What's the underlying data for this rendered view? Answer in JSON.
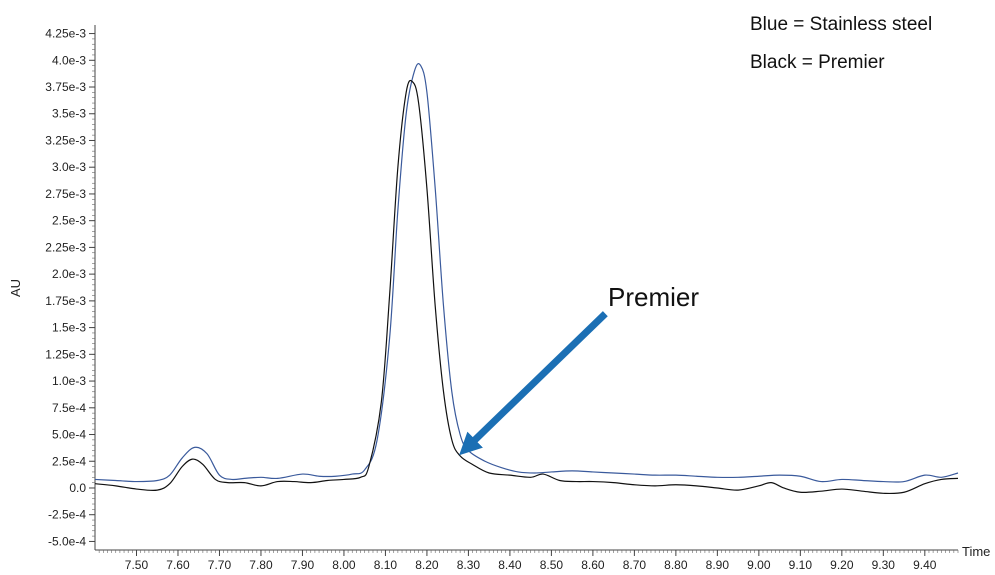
{
  "chart_data": {
    "type": "line",
    "xlabel": "Time",
    "ylabel": "AU",
    "xlim": [
      7.4,
      9.48
    ],
    "ylim": [
      -0.00058,
      0.00433
    ],
    "x_ticks": [
      7.5,
      7.6,
      7.7,
      7.8,
      7.9,
      8.0,
      8.1,
      8.2,
      8.3,
      8.4,
      8.5,
      8.6,
      8.7,
      8.8,
      8.9,
      9.0,
      9.1,
      9.2,
      9.3,
      9.4
    ],
    "x_tick_labels": [
      "7.50",
      "7.60",
      "7.70",
      "7.80",
      "7.90",
      "8.00",
      "8.10",
      "8.20",
      "8.30",
      "8.40",
      "8.50",
      "8.60",
      "8.70",
      "8.80",
      "8.90",
      "9.00",
      "9.10",
      "9.20",
      "9.30",
      "9.40"
    ],
    "y_ticks": [
      0.00425,
      0.004,
      0.00375,
      0.0035,
      0.00325,
      0.003,
      0.00275,
      0.0025,
      0.00225,
      0.002,
      0.00175,
      0.0015,
      0.00125,
      0.001,
      0.00075,
      0.0005,
      0.00025,
      0.0,
      -0.00025,
      -0.0005
    ],
    "y_tick_labels": [
      "4.25e-3",
      "4.0e-3",
      "3.75e-3",
      "3.5e-3",
      "3.25e-3",
      "3.0e-3",
      "2.75e-3",
      "2.5e-3",
      "2.25e-3",
      "2.0e-3",
      "1.75e-3",
      "1.5e-3",
      "1.25e-3",
      "1.0e-3",
      "7.5e-4",
      "5.0e-4",
      "2.5e-4",
      "0.0",
      "-2.5e-4",
      "-5.0e-4"
    ],
    "grid": false,
    "legend_lines": [
      "Blue = Stainless steel",
      "Black = Premier"
    ],
    "series": [
      {
        "color": "#3a5a9c",
        "points": [
          [
            7.4,
            8e-05
          ],
          [
            7.45,
            7e-05
          ],
          [
            7.5,
            6e-05
          ],
          [
            7.55,
            7e-05
          ],
          [
            7.58,
            0.00012
          ],
          [
            7.61,
            0.00028
          ],
          [
            7.64,
            0.00038
          ],
          [
            7.67,
            0.00032
          ],
          [
            7.7,
            0.00012
          ],
          [
            7.73,
            8e-05
          ],
          [
            7.76,
            9e-05
          ],
          [
            7.8,
            0.0001
          ],
          [
            7.84,
            9e-05
          ],
          [
            7.9,
            0.00013
          ],
          [
            7.94,
            0.00011
          ],
          [
            7.98,
            0.00011
          ],
          [
            8.02,
            0.00013
          ],
          [
            8.05,
            0.00017
          ],
          [
            8.08,
            0.00045
          ],
          [
            8.11,
            0.0014
          ],
          [
            8.13,
            0.0026
          ],
          [
            8.15,
            0.0035
          ],
          [
            8.17,
            0.0039
          ],
          [
            8.185,
            0.00395
          ],
          [
            8.2,
            0.0037
          ],
          [
            8.22,
            0.0028
          ],
          [
            8.24,
            0.0017
          ],
          [
            8.26,
            0.0009
          ],
          [
            8.28,
            0.0005
          ],
          [
            8.3,
            0.00035
          ],
          [
            8.34,
            0.00025
          ],
          [
            8.38,
            0.00019
          ],
          [
            8.42,
            0.00015
          ],
          [
            8.46,
            0.00014
          ],
          [
            8.5,
            0.00015
          ],
          [
            8.55,
            0.00016
          ],
          [
            8.6,
            0.00015
          ],
          [
            8.65,
            0.00014
          ],
          [
            8.7,
            0.00013
          ],
          [
            8.75,
            0.00012
          ],
          [
            8.8,
            0.00012
          ],
          [
            8.85,
            0.00011
          ],
          [
            8.9,
            0.0001
          ],
          [
            8.95,
            0.0001
          ],
          [
            9.0,
            0.00011
          ],
          [
            9.05,
            0.00012
          ],
          [
            9.1,
            0.00011
          ],
          [
            9.15,
            6e-05
          ],
          [
            9.2,
            8e-05
          ],
          [
            9.25,
            7e-05
          ],
          [
            9.3,
            6e-05
          ],
          [
            9.35,
            6e-05
          ],
          [
            9.4,
            0.00012
          ],
          [
            9.44,
            0.0001
          ],
          [
            9.48,
            0.00014
          ]
        ]
      },
      {
        "color": "#111111",
        "points": [
          [
            7.4,
            4e-05
          ],
          [
            7.45,
            2e-05
          ],
          [
            7.5,
            -1e-05
          ],
          [
            7.55,
            -2e-05
          ],
          [
            7.58,
            4e-05
          ],
          [
            7.61,
            0.0002
          ],
          [
            7.635,
            0.00027
          ],
          [
            7.66,
            0.00022
          ],
          [
            7.69,
            8e-05
          ],
          [
            7.72,
            5e-05
          ],
          [
            7.76,
            5e-05
          ],
          [
            7.8,
            2e-05
          ],
          [
            7.84,
            6e-05
          ],
          [
            7.88,
            6e-05
          ],
          [
            7.92,
            5e-05
          ],
          [
            7.96,
            7e-05
          ],
          [
            8.0,
            8e-05
          ],
          [
            8.04,
            0.0001
          ],
          [
            8.06,
            0.0002
          ],
          [
            8.09,
            0.0008
          ],
          [
            8.11,
            0.0018
          ],
          [
            8.13,
            0.003
          ],
          [
            8.15,
            0.0037
          ],
          [
            8.165,
            0.0038
          ],
          [
            8.18,
            0.0036
          ],
          [
            8.2,
            0.0028
          ],
          [
            8.22,
            0.0017
          ],
          [
            8.24,
            0.0009
          ],
          [
            8.26,
            0.00045
          ],
          [
            8.28,
            0.0003
          ],
          [
            8.31,
            0.00022
          ],
          [
            8.35,
            0.00014
          ],
          [
            8.4,
            0.00012
          ],
          [
            8.45,
            0.0001
          ],
          [
            8.48,
            0.00013
          ],
          [
            8.52,
            7e-05
          ],
          [
            8.56,
            6e-05
          ],
          [
            8.6,
            6e-05
          ],
          [
            8.65,
            5e-05
          ],
          [
            8.7,
            3e-05
          ],
          [
            8.75,
            2e-05
          ],
          [
            8.8,
            3e-05
          ],
          [
            8.85,
            2e-05
          ],
          [
            8.9,
            0.0
          ],
          [
            8.95,
            -2e-05
          ],
          [
            9.0,
            2e-05
          ],
          [
            9.03,
            5e-05
          ],
          [
            9.06,
            0.0
          ],
          [
            9.1,
            -4e-05
          ],
          [
            9.15,
            -3e-05
          ],
          [
            9.2,
            -1e-05
          ],
          [
            9.25,
            -3e-05
          ],
          [
            9.3,
            -5e-05
          ],
          [
            9.35,
            -4e-05
          ],
          [
            9.4,
            4e-05
          ],
          [
            9.44,
            8e-05
          ],
          [
            9.48,
            9e-05
          ]
        ]
      }
    ],
    "annotation": {
      "label": "Premier",
      "arrow_color": "#1b6fb4",
      "tip": [
        8.285,
        0.00035
      ],
      "tail": [
        8.63,
        0.00163
      ]
    }
  }
}
